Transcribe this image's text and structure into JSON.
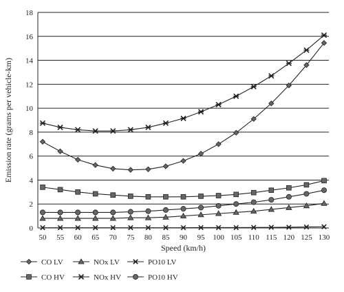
{
  "chart_data": {
    "type": "line",
    "xlabel": "Speed (km/h)",
    "ylabel": "Emission rate (grams per vehicle-km)",
    "ylim": [
      0,
      18
    ],
    "yticks": [
      0,
      2,
      4,
      6,
      8,
      10,
      12,
      14,
      16,
      18
    ],
    "grid": "horizontal",
    "legend_position": "bottom",
    "x": [
      50,
      55,
      60,
      65,
      70,
      75,
      80,
      85,
      90,
      95,
      100,
      105,
      110,
      115,
      120,
      125,
      130
    ],
    "series": [
      {
        "name": "CO LV",
        "marker": "diamond",
        "values": [
          7.2,
          6.4,
          5.7,
          5.25,
          4.95,
          4.85,
          4.9,
          5.15,
          5.6,
          6.2,
          7.0,
          7.95,
          9.1,
          10.4,
          11.9,
          13.6,
          15.45
        ]
      },
      {
        "name": "CO HV",
        "marker": "square",
        "values": [
          3.4,
          3.2,
          3.0,
          2.85,
          2.75,
          2.65,
          2.6,
          2.6,
          2.6,
          2.65,
          2.7,
          2.8,
          2.95,
          3.15,
          3.35,
          3.6,
          3.95
        ]
      },
      {
        "name": "NOx LV",
        "marker": "triangle",
        "values": [
          0.8,
          0.8,
          0.8,
          0.8,
          0.8,
          0.85,
          0.85,
          0.9,
          1.0,
          1.1,
          1.2,
          1.3,
          1.4,
          1.55,
          1.7,
          1.85,
          2.05
        ]
      },
      {
        "name": "NOx HV",
        "marker": "asterisk",
        "values": [
          8.75,
          8.4,
          8.2,
          8.1,
          8.1,
          8.2,
          8.4,
          8.75,
          9.15,
          9.7,
          10.3,
          11.0,
          11.8,
          12.7,
          13.75,
          14.85,
          16.1
        ]
      },
      {
        "name": "PO10 LV",
        "marker": "x",
        "values": [
          0.02,
          0.02,
          0.02,
          0.02,
          0.02,
          0.02,
          0.02,
          0.02,
          0.02,
          0.03,
          0.03,
          0.03,
          0.04,
          0.05,
          0.06,
          0.08,
          0.1
        ]
      },
      {
        "name": "PO10 HV",
        "marker": "circle",
        "values": [
          1.3,
          1.3,
          1.3,
          1.3,
          1.3,
          1.35,
          1.4,
          1.5,
          1.6,
          1.7,
          1.85,
          2.0,
          2.15,
          2.35,
          2.6,
          2.85,
          3.15
        ]
      }
    ],
    "line_color": "#222222"
  }
}
